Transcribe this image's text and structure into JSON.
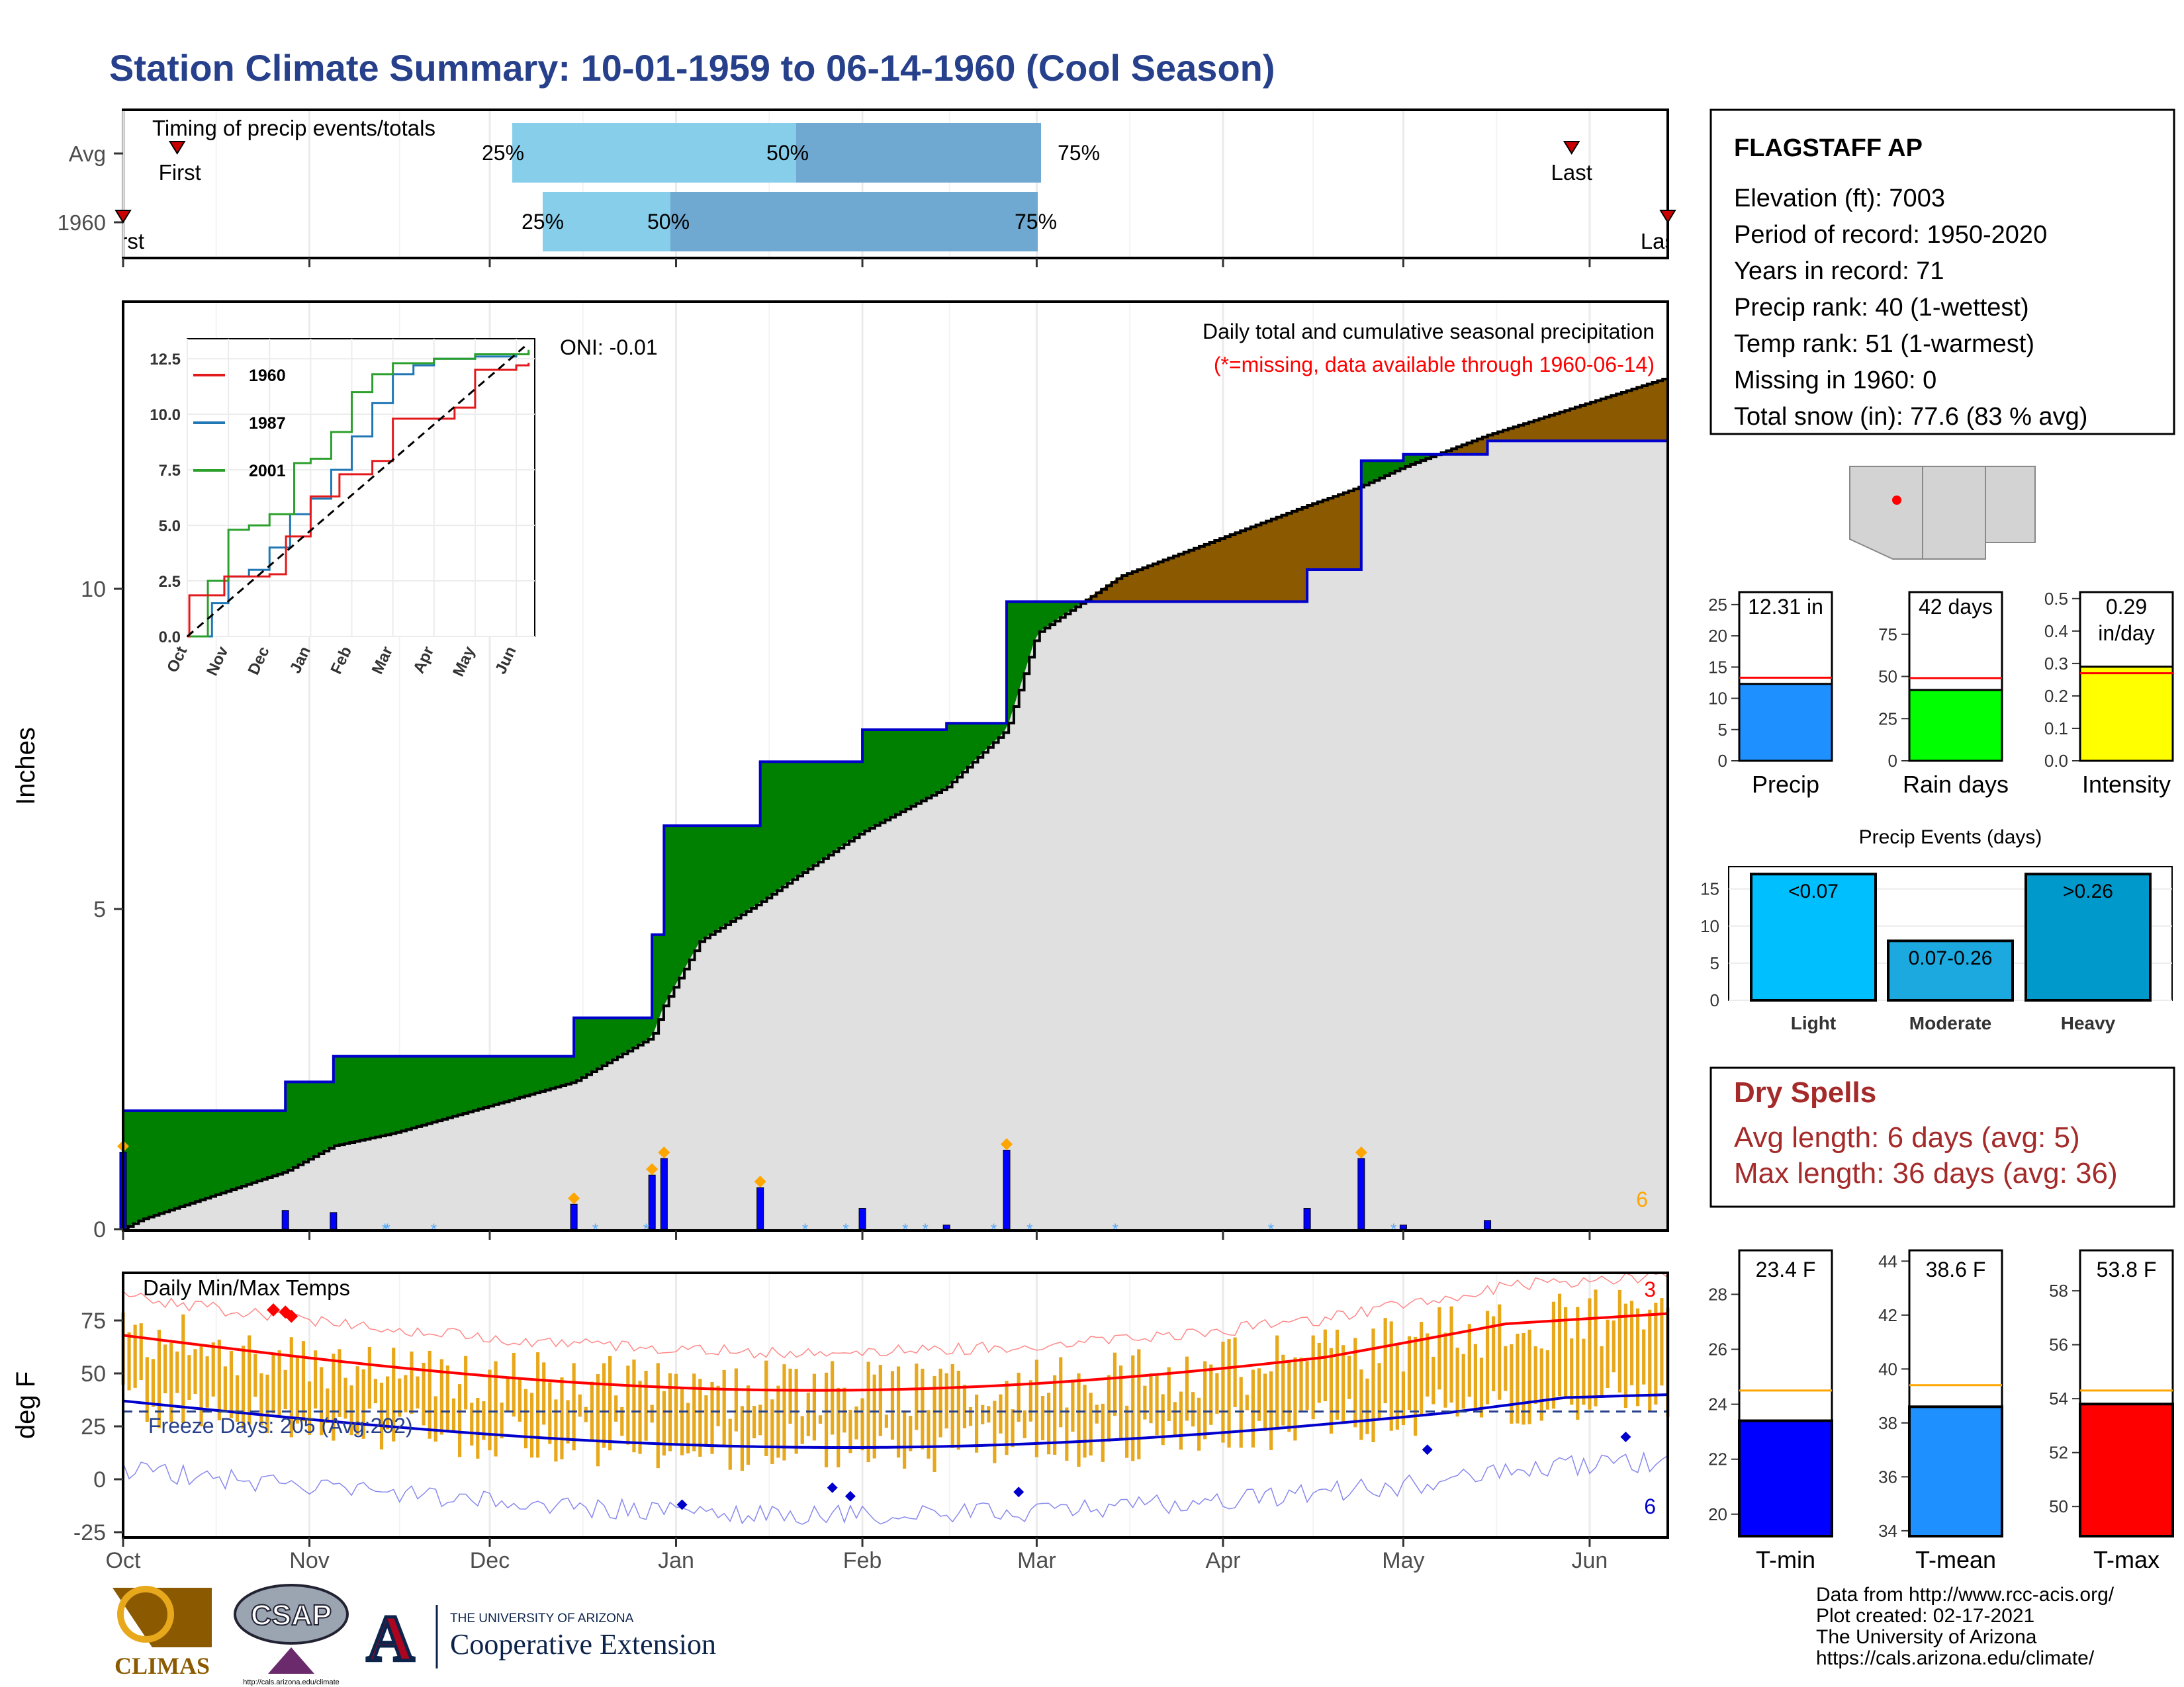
{
  "title": "Station Climate Summary: 10-01-1959 to 06-14-1960 (Cool Season)",
  "colors": {
    "title": "#27408B",
    "wet_surplus": "#008000",
    "dry_deficit": "#8B5A00",
    "normal_fill": "#e0e0e0",
    "observed_line": "#0000CC",
    "bar_q1": "#87CEEB",
    "bar_q2": "#6FA8D0",
    "temp_bar": "#E8A81C",
    "tmax_line": "#ff0000",
    "tmin_line": "#0000cc",
    "dry_spell_text": "#A52A2A"
  },
  "timing_panel": {
    "label": "Timing of precip events/totals",
    "rows": [
      {
        "row_label": "Avg",
        "first_label": "First",
        "last_label": "Last",
        "p25": "25%",
        "p50": "50%",
        "p75": "75%"
      },
      {
        "row_label": "1960",
        "first_label": "First",
        "last_label": "Last",
        "p25": "25%",
        "p50": "50%",
        "p75": "75%"
      }
    ]
  },
  "precip_panel": {
    "ylabel": "Inches",
    "yticks": [
      "0",
      "5",
      "10"
    ],
    "note1": "Daily total and cumulative seasonal precipitation",
    "note2": "(*=missing, data available through 1960-06-14)",
    "oni": "ONI: -0.01",
    "count_label": "6"
  },
  "inset": {
    "yticks": [
      "0.0",
      "2.5",
      "5.0",
      "7.5",
      "10.0",
      "12.5"
    ],
    "xticks": [
      "Oct",
      "Nov",
      "Dec",
      "Jan",
      "Feb",
      "Mar",
      "Apr",
      "May",
      "Jun"
    ],
    "legend": [
      "1960",
      "1987",
      "2001"
    ]
  },
  "temp_panel": {
    "label": "Daily Min/Max Temps",
    "ylabel": "deg F",
    "yticks": [
      "-25",
      "0",
      "25",
      "50",
      "75"
    ],
    "freeze_label": "Freeze Days: 205 (Avg:202)",
    "count_max": "3",
    "count_min": "6"
  },
  "x_months": [
    "Oct",
    "Nov",
    "Dec",
    "Jan",
    "Feb",
    "Mar",
    "Apr",
    "May",
    "Jun"
  ],
  "station": {
    "name": "FLAGSTAFF AP",
    "lines": [
      "Elevation (ft): 7003",
      "Period of record: 1950-2020",
      "Years in record: 71",
      "Precip rank: 40 (1-wettest)",
      "Temp rank: 51 (1-warmest)",
      "Missing in 1960: 0",
      "Total snow (in): 77.6 (83 % avg)"
    ]
  },
  "mini_bars": [
    {
      "name": "Precip",
      "value": 12.31,
      "avg": 13.3,
      "label1": "12.31 in",
      "label2": "",
      "color": "#1E90FF",
      "ymax": 27,
      "yticks": [
        "0",
        "5",
        "10",
        "15",
        "20",
        "25"
      ],
      "tickvals": [
        0,
        5,
        10,
        15,
        20,
        25
      ]
    },
    {
      "name": "Rain days",
      "value": 42,
      "avg": 49,
      "label1": "42 days",
      "label2": "",
      "color": "#00FF00",
      "ymax": 100,
      "yticks": [
        "0",
        "25",
        "50",
        "75"
      ],
      "tickvals": [
        0,
        25,
        50,
        75
      ]
    },
    {
      "name": "Intensity",
      "value": 0.29,
      "avg": 0.27,
      "label1": "0.29",
      "label2": "in/day",
      "color": "#FFFF00",
      "ymax": 0.52,
      "yticks": [
        "0.0",
        "0.1",
        "0.2",
        "0.3",
        "0.4",
        "0.5"
      ],
      "tickvals": [
        0,
        0.1,
        0.2,
        0.3,
        0.4,
        0.5
      ]
    }
  ],
  "precip_events": {
    "title": "Precip Events (days)",
    "categories": [
      "Light",
      "Moderate",
      "Heavy"
    ],
    "bar_labels": [
      "<0.07",
      "0.07-0.26",
      ">0.26"
    ],
    "values": [
      17,
      8,
      17
    ],
    "colors": [
      "#00BFFF",
      "#1CA9E0",
      "#0099CC"
    ],
    "yticks": [
      "0",
      "5",
      "10",
      "15"
    ]
  },
  "dry_spells": {
    "title": "Dry Spells",
    "avg_length": "Avg length: 6 days (avg: 5)",
    "max_length": "Max length: 36 days (avg: 36)"
  },
  "temp_bars": [
    {
      "name": "T-min",
      "value": 23.4,
      "avg": 24.5,
      "label": "23.4 F",
      "color": "#0000FF",
      "ymin": 19.2,
      "ymax": 29.6,
      "tickvals": [
        20,
        22,
        24,
        26,
        28
      ]
    },
    {
      "name": "T-mean",
      "value": 38.6,
      "avg": 39.4,
      "label": "38.6 F",
      "color": "#1E90FF",
      "ymin": 33.8,
      "ymax": 44.4,
      "tickvals": [
        34,
        36,
        38,
        40,
        42,
        44
      ]
    },
    {
      "name": "T-max",
      "value": 53.8,
      "avg": 54.3,
      "label": "53.8 F",
      "color": "#FF0000",
      "ymin": 48.9,
      "ymax": 59.5,
      "tickvals": [
        50,
        52,
        54,
        56,
        58
      ]
    }
  ],
  "footer": {
    "lines": [
      "Data from http://www.rcc-acis.org/",
      "Plot created: 02-17-2021",
      "The University of Arizona",
      "https://cals.arizona.edu/climate/"
    ],
    "logo_climas": "CLIMAS",
    "logo_csap": "CSAP",
    "csap_url": "http://cals.arizona.edu/climate",
    "ua_top": "THE UNIVERSITY OF ARIZONA",
    "ua_bottom": "Cooperative Extension"
  },
  "chart_data": {
    "type": "area",
    "title": "Daily total and cumulative seasonal precipitation",
    "ylabel": "Inches",
    "ylim": [
      0,
      13.5
    ],
    "x": [
      "1959-10-01",
      "1959-10-04",
      "1959-10-28",
      "1959-11-05",
      "1959-11-15",
      "1959-12-15",
      "1959-12-28",
      "1959-12-30",
      "1960-01-05",
      "1960-01-15",
      "1960-01-21",
      "1960-02-01",
      "1960-02-15",
      "1960-02-25",
      "1960-03-01",
      "1960-03-15",
      "1960-04-15",
      "1960-04-24",
      "1960-05-01",
      "1960-05-15",
      "1960-06-14"
    ],
    "series": [
      {
        "name": "1960",
        "values": [
          0,
          1.85,
          1.85,
          2.3,
          2.7,
          2.7,
          3.3,
          4.6,
          6.3,
          6.3,
          7.3,
          7.3,
          7.8,
          7.9,
          9.8,
          9.8,
          9.8,
          10.3,
          12.0,
          12.1,
          12.31
        ]
      },
      {
        "name": "Avg",
        "values": [
          0,
          0.15,
          0.9,
          1.3,
          1.5,
          2.3,
          3.0,
          3.5,
          4.5,
          5.1,
          5.5,
          6.2,
          6.9,
          7.8,
          9.3,
          10.2,
          11.3,
          11.6,
          11.9,
          12.4,
          13.3
        ]
      }
    ]
  }
}
